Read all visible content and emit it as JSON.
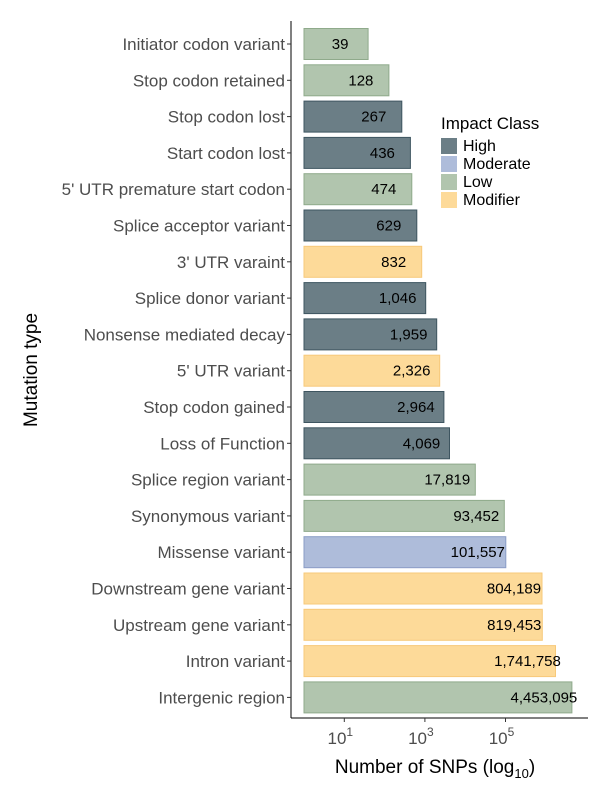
{
  "chart_data": {
    "type": "bar",
    "orientation": "horizontal",
    "xlabel": "Number of SNPs (log",
    "xlabel_subscript": "10",
    "xlabel_suffix": ")",
    "ylabel": "Mutation type",
    "x_scale": "log10",
    "xlim": [
      1,
      3000000
    ],
    "x_ticks": [
      {
        "value": 10,
        "base": "10",
        "exp": "1"
      },
      {
        "value": 1000,
        "base": "10",
        "exp": "3"
      },
      {
        "value": 100000,
        "base": "10",
        "exp": "5"
      }
    ],
    "grid": false,
    "legend": {
      "title": "Impact Class",
      "placement": "right",
      "entries": [
        {
          "name": "High",
          "color": "#6b7e86"
        },
        {
          "name": "Moderate",
          "color": "#aebcda"
        },
        {
          "name": "Low",
          "color": "#b1c5ae"
        },
        {
          "name": "Modifier",
          "color": "#fdda99"
        }
      ]
    },
    "categories": [
      "Initiator codon variant",
      "Stop codon retained",
      "Stop codon lost",
      "Start codon lost",
      "5' UTR premature start codon",
      "Splice acceptor variant",
      "3' UTR varaint",
      "Splice donor variant",
      "Nonsense mediated decay",
      "5' UTR variant",
      "Stop codon gained",
      "Loss of Function",
      "Splice region variant",
      "Synonymous variant",
      "Missense variant",
      "Downstream gene variant",
      "Upstream gene variant",
      "Intron variant",
      "Intergenic region"
    ],
    "values": [
      39,
      128,
      267,
      436,
      474,
      629,
      832,
      1046,
      1959,
      2326,
      2964,
      4069,
      17819,
      93452,
      101557,
      804189,
      819453,
      1741758,
      4453095
    ],
    "value_labels": [
      "39",
      "128",
      "267",
      "436",
      "474",
      "629",
      "832",
      "1,046",
      "1,959",
      "2,326",
      "2,964",
      "4,069",
      "17,819",
      "93,452",
      "101,557",
      "804,189",
      "819,453",
      "1,741,758",
      "4,453,095"
    ],
    "impact_class": [
      "Low",
      "Low",
      "High",
      "High",
      "Low",
      "High",
      "Modifier",
      "High",
      "High",
      "Modifier",
      "High",
      "High",
      "Low",
      "Low",
      "Moderate",
      "Modifier",
      "Modifier",
      "Modifier",
      "Low"
    ]
  }
}
